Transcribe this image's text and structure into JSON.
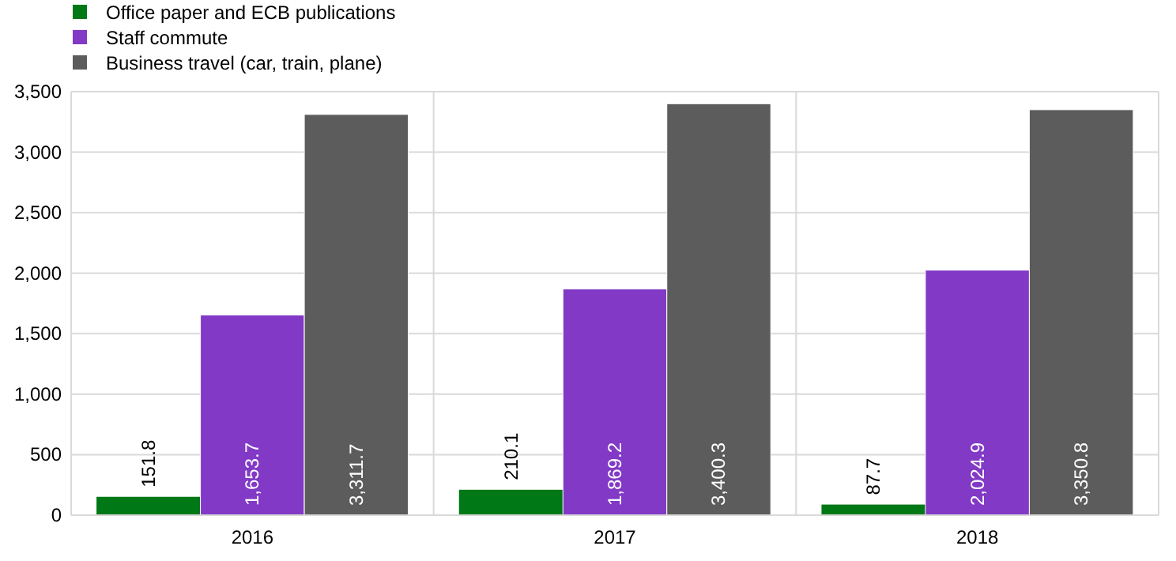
{
  "chart_data": {
    "type": "bar",
    "categories": [
      "2016",
      "2017",
      "2018"
    ],
    "series": [
      {
        "name": "Office paper and ECB publications",
        "color": "#007816",
        "values": [
          151.8,
          210.1,
          87.7
        ],
        "value_labels": [
          "151.8",
          "210.1",
          "87.7"
        ]
      },
      {
        "name": "Staff commute",
        "color": "#8139c6",
        "values": [
          1653.7,
          1869.2,
          2024.9
        ],
        "value_labels": [
          "1,653.7",
          "1,869.2",
          "2,024.9"
        ]
      },
      {
        "name": "Business travel (car, train, plane)",
        "color": "#5c5c5c",
        "values": [
          3311.7,
          3400.3,
          3350.8
        ],
        "value_labels": [
          "3,311.7",
          "3,400.3",
          "3,350.8"
        ]
      }
    ],
    "ylim": [
      0,
      3500
    ],
    "yticks": [
      {
        "value": 0,
        "label": "0"
      },
      {
        "value": 500,
        "label": "500"
      },
      {
        "value": 1000,
        "label": "1,000"
      },
      {
        "value": 1500,
        "label": "1,500"
      },
      {
        "value": 2000,
        "label": "2,000"
      },
      {
        "value": 2500,
        "label": "2,500"
      },
      {
        "value": 3000,
        "label": "3,000"
      },
      {
        "value": 3500,
        "label": "3,500"
      }
    ],
    "grid": true,
    "legend": "top left"
  }
}
